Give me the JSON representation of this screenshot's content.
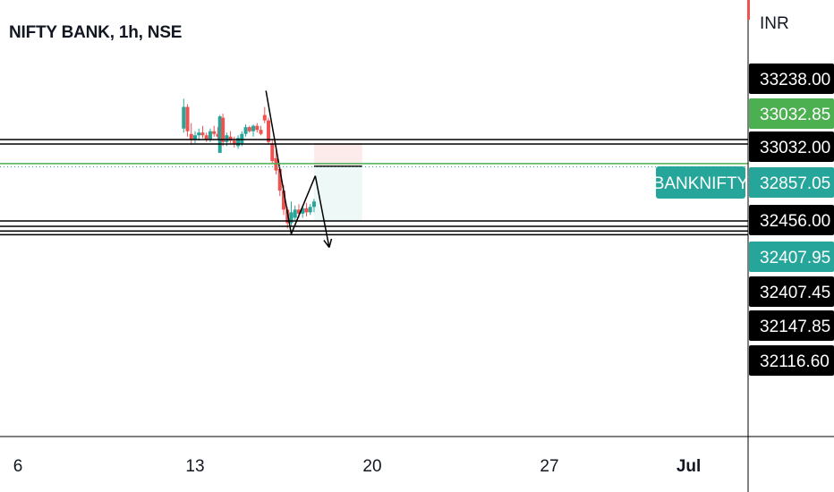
{
  "header": {
    "symbol_title": "NIFTY BANK, 1h, NSE",
    "currency": "INR"
  },
  "x_axis": {
    "ticks": [
      "6",
      "13",
      "20",
      "27",
      "Jul"
    ]
  },
  "ticker_tag": {
    "label": "BANKNIFTY",
    "value": "32857.05",
    "color": "#26a69a"
  },
  "price_labels": [
    {
      "text": "33238.00",
      "bg": "#000000"
    },
    {
      "text": "33032.85",
      "bg": "#4caf50"
    },
    {
      "text": "33032.00",
      "bg": "#000000"
    },
    {
      "text": "32857.05",
      "bg": "#26a69a"
    },
    {
      "text": "32456.00",
      "bg": "#000000"
    },
    {
      "text": "32407.95",
      "bg": "#26a69a"
    },
    {
      "text": "32407.45",
      "bg": "#000000"
    },
    {
      "text": "32147.85",
      "bg": "#000000"
    },
    {
      "text": "32116.60",
      "bg": "#000000"
    }
  ],
  "colors": {
    "up": "#26a69a",
    "down": "#ef5350",
    "green_line": "#4caf50",
    "drawing": "#000000"
  },
  "chart_data": {
    "type": "candlestick",
    "title": "NIFTY BANK, 1h, NSE",
    "currency": "INR",
    "x_ticks": [
      "6",
      "13",
      "20",
      "27",
      "Jul"
    ],
    "ylim": [
      31900,
      33600
    ],
    "last_price": 32857.05,
    "horizontal_levels": [
      33238.0,
      33032.85,
      33032.0,
      32456.0,
      32407.95,
      32407.45,
      32147.85,
      32116.6
    ],
    "candles": [
      {
        "day": 12.55,
        "o": 33140,
        "h": 33360,
        "l": 33110,
        "c": 33300
      },
      {
        "day": 12.7,
        "o": 33300,
        "h": 33320,
        "l": 33080,
        "c": 33120
      },
      {
        "day": 12.85,
        "o": 33100,
        "h": 33180,
        "l": 33020,
        "c": 33060
      },
      {
        "day": 13.0,
        "o": 33060,
        "h": 33120,
        "l": 33030,
        "c": 33090
      },
      {
        "day": 13.15,
        "o": 33090,
        "h": 33140,
        "l": 33050,
        "c": 33110
      },
      {
        "day": 13.3,
        "o": 33110,
        "h": 33160,
        "l": 33070,
        "c": 33090
      },
      {
        "day": 13.45,
        "o": 33090,
        "h": 33110,
        "l": 33040,
        "c": 33060
      },
      {
        "day": 13.6,
        "o": 33060,
        "h": 33140,
        "l": 33040,
        "c": 33120
      },
      {
        "day": 13.75,
        "o": 33120,
        "h": 33160,
        "l": 33080,
        "c": 33100
      },
      {
        "day": 13.9,
        "o": 33100,
        "h": 33150,
        "l": 33060,
        "c": 33080
      },
      {
        "day": 13.98,
        "o": 32960,
        "h": 33240,
        "l": 32960,
        "c": 33230
      },
      {
        "day": 14.1,
        "o": 33220,
        "h": 33250,
        "l": 33010,
        "c": 33040
      },
      {
        "day": 14.25,
        "o": 33040,
        "h": 33110,
        "l": 33010,
        "c": 33090
      },
      {
        "day": 14.4,
        "o": 33080,
        "h": 33120,
        "l": 33030,
        "c": 33050
      },
      {
        "day": 14.55,
        "o": 33050,
        "h": 33080,
        "l": 33000,
        "c": 33030
      },
      {
        "day": 14.7,
        "o": 33010,
        "h": 33090,
        "l": 32990,
        "c": 33070
      },
      {
        "day": 14.85,
        "o": 33030,
        "h": 33120,
        "l": 33010,
        "c": 33100
      },
      {
        "day": 15.0,
        "o": 33100,
        "h": 33170,
        "l": 33080,
        "c": 33150
      },
      {
        "day": 15.15,
        "o": 33150,
        "h": 33160,
        "l": 33110,
        "c": 33120
      },
      {
        "day": 15.3,
        "o": 33120,
        "h": 33170,
        "l": 33080,
        "c": 33160
      },
      {
        "day": 15.45,
        "o": 33160,
        "h": 33180,
        "l": 33110,
        "c": 33130
      },
      {
        "day": 15.6,
        "o": 33130,
        "h": 33160,
        "l": 33090,
        "c": 33100
      },
      {
        "day": 15.75,
        "o": 33240,
        "h": 33300,
        "l": 33180,
        "c": 33200
      },
      {
        "day": 15.9,
        "o": 33200,
        "h": 33220,
        "l": 33020,
        "c": 33040
      },
      {
        "day": 16.05,
        "o": 33030,
        "h": 33060,
        "l": 32880,
        "c": 32900
      },
      {
        "day": 16.2,
        "o": 32920,
        "h": 32980,
        "l": 32800,
        "c": 32830
      },
      {
        "day": 16.35,
        "o": 32840,
        "h": 32860,
        "l": 32640,
        "c": 32680
      },
      {
        "day": 16.5,
        "o": 32680,
        "h": 32720,
        "l": 32500,
        "c": 32540
      },
      {
        "day": 16.65,
        "o": 32540,
        "h": 32560,
        "l": 32400,
        "c": 32440
      },
      {
        "day": 16.8,
        "o": 32440,
        "h": 32600,
        "l": 32420,
        "c": 32520
      },
      {
        "day": 16.95,
        "o": 32480,
        "h": 32570,
        "l": 32460,
        "c": 32540
      },
      {
        "day": 17.1,
        "o": 32540,
        "h": 32580,
        "l": 32480,
        "c": 32510
      },
      {
        "day": 17.25,
        "o": 32510,
        "h": 32570,
        "l": 32480,
        "c": 32550
      },
      {
        "day": 17.4,
        "o": 32550,
        "h": 32590,
        "l": 32490,
        "c": 32520
      },
      {
        "day": 17.55,
        "o": 32520,
        "h": 32580,
        "l": 32500,
        "c": 32560
      },
      {
        "day": 17.7,
        "o": 32560,
        "h": 32620,
        "l": 32520,
        "c": 32600
      }
    ],
    "drawings": [
      {
        "type": "trendline",
        "from": {
          "day": 15.8,
          "price": 33420
        },
        "to": {
          "day": 16.8,
          "price": 32360
        }
      },
      {
        "type": "trendline",
        "from": {
          "day": 16.8,
          "price": 32360
        },
        "to": {
          "day": 17.75,
          "price": 32790
        }
      },
      {
        "type": "arrow",
        "from": {
          "day": 17.75,
          "price": 32790
        },
        "to": {
          "day": 18.3,
          "price": 32260
        }
      },
      {
        "type": "short_position",
        "from_day": 17.7,
        "to_day": 19.6,
        "entry": 32857.05,
        "stop": 33032.0,
        "target": 32456.0
      }
    ]
  }
}
